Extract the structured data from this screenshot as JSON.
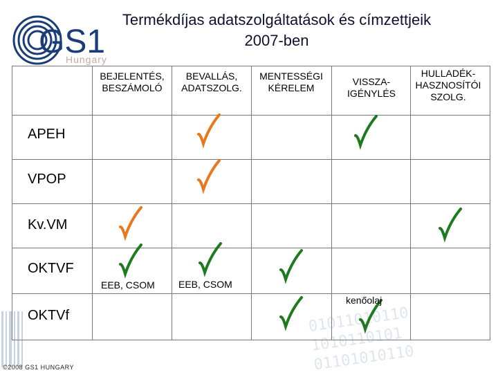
{
  "title_line1": "Termékdíjas adatszolgáltatások és címzettjeik",
  "title_line2": "2007-ben",
  "logo": {
    "name": "GS1",
    "sub": "Hungary"
  },
  "columns": [
    {
      "line1": "BEJELENTÉS,",
      "line2": "BESZÁMOLÓ"
    },
    {
      "line1": "BEVALLÁS,",
      "line2": "ADATSZOLG."
    },
    {
      "line1": "MENTESSÉGI",
      "line2": "KÉRELEM"
    },
    {
      "line1": "VISSZA-",
      "line2": "IGÉNYLÉS"
    },
    {
      "line1": "HULLADÉK-",
      "line2": "HASZNOSÍTÓI",
      "line3": "SZOLG."
    }
  ],
  "rows": [
    "APEH",
    "VPOP",
    "Kv.VM",
    "OKTVF",
    "OKTVf"
  ],
  "notes": {
    "oktvf_col1": "EEB, CSOM",
    "oktvf_col2": "EEB, CSOM",
    "oktvf_col4": "kenőolaj"
  },
  "copyright": "©2008 GS1 HUNGARY",
  "colors": {
    "orange": "#e8781e",
    "green": "#1e7a1e"
  }
}
